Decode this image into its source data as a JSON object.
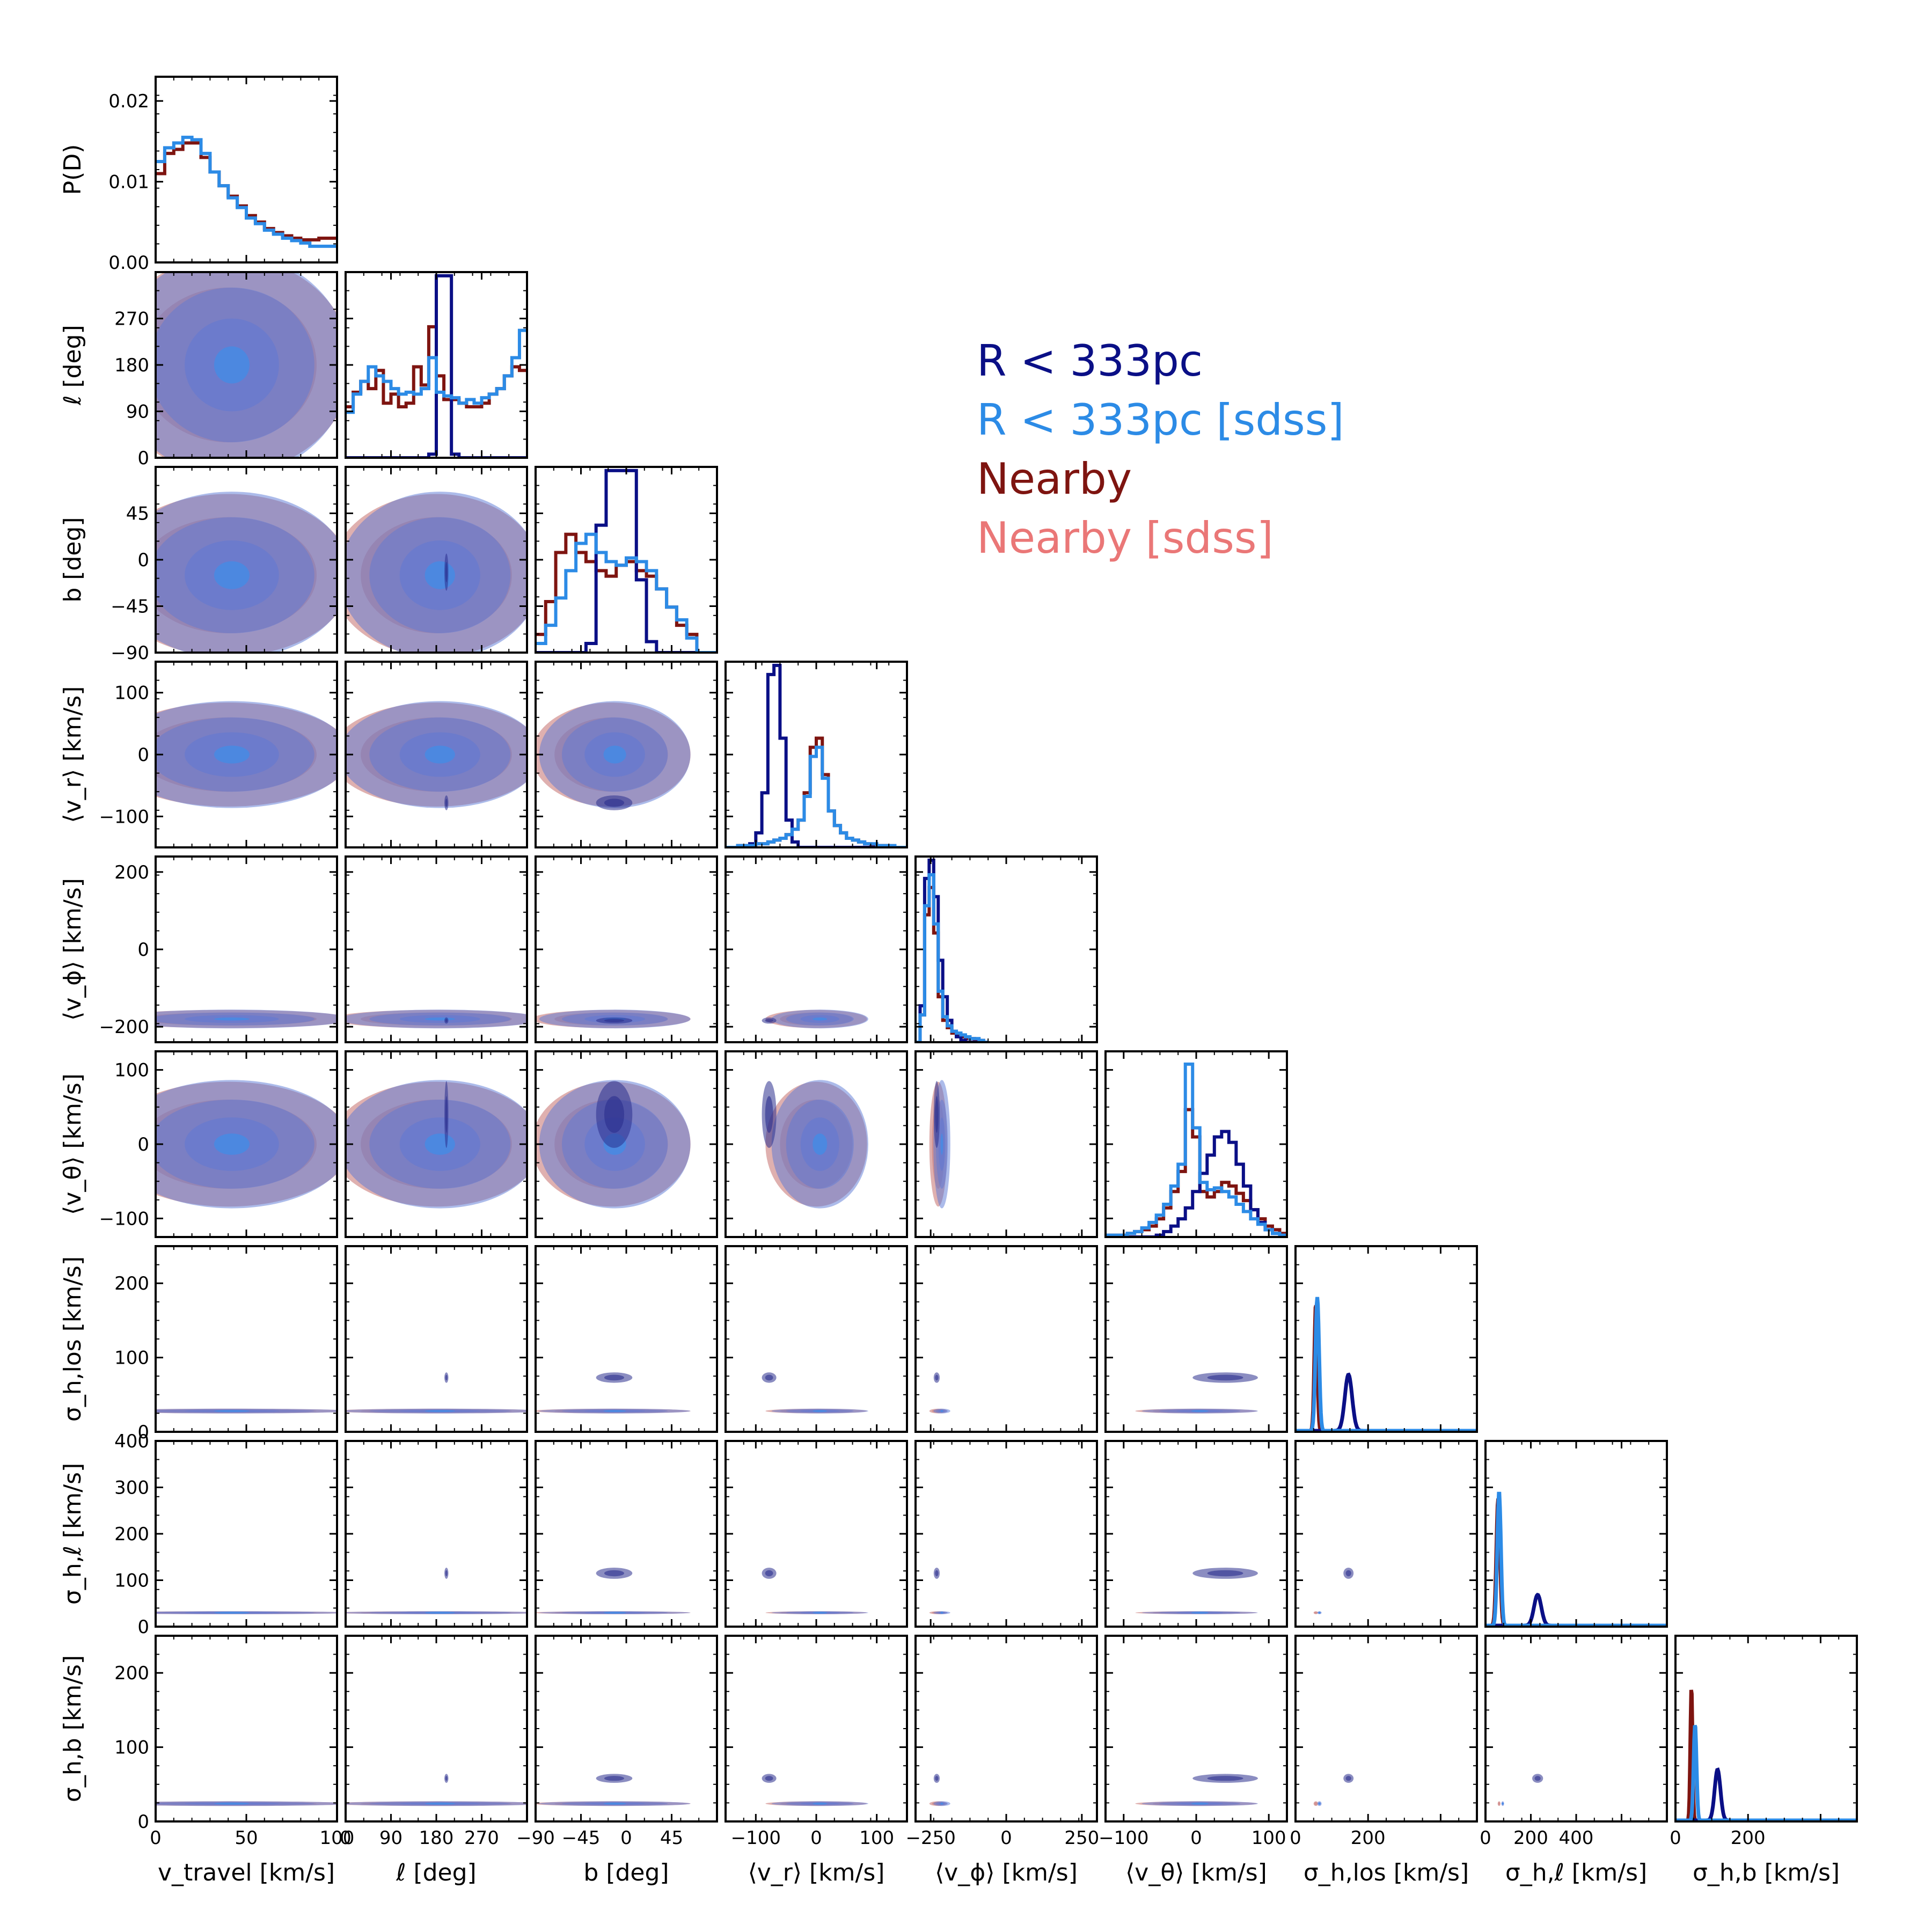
{
  "chart_data": {
    "type": "corner",
    "title": "",
    "grid": false,
    "legend_placement": "upper-right",
    "series": [
      {
        "name": "R < 333pc",
        "color": "#0a0f86"
      },
      {
        "name": "R < 333pc [sdss]",
        "color": "#2c8be6"
      },
      {
        "name": "Nearby",
        "color": "#7e1410"
      },
      {
        "name": "Nearby [sdss]",
        "color": "#ea7777"
      }
    ],
    "contour_colors": {
      "blue_fill": "#5a78d6",
      "red_fill": "#c46f6d",
      "dark_fill": "#2c2f8e"
    },
    "parameters": [
      {
        "key": "vtravel",
        "label": "v_travel [km/s]",
        "range": [
          0,
          100
        ],
        "ticks": [
          0,
          50,
          100
        ]
      },
      {
        "key": "l",
        "label": "ℓ [deg]",
        "range": [
          0,
          360
        ],
        "ticks": [
          0,
          90,
          180,
          270
        ]
      },
      {
        "key": "b",
        "label": "b [deg]",
        "range": [
          -90,
          90
        ],
        "ticks": [
          -90,
          -45,
          0,
          45
        ]
      },
      {
        "key": "vr",
        "label": "⟨v_r⟩ [km/s]",
        "range": [
          -150,
          150
        ],
        "ticks": [
          -100,
          0,
          100
        ]
      },
      {
        "key": "vphi",
        "label": "⟨v_ϕ⟩ [km/s]",
        "range": [
          -300,
          300
        ],
        "ticks": [
          -250,
          0,
          250
        ]
      },
      {
        "key": "vtheta",
        "label": "⟨v_θ⟩ [km/s]",
        "range": [
          -125,
          125
        ],
        "ticks": [
          -100,
          0,
          100
        ]
      },
      {
        "key": "slos",
        "label": "σ_h,los [km/s]",
        "range": [
          0,
          250
        ],
        "ticks": [
          0,
          100,
          200
        ]
      },
      {
        "key": "sl",
        "label": "σ_h,ℓ [km/s]",
        "range": [
          0,
          400
        ],
        "ticks": [
          0,
          100,
          200,
          300,
          400
        ]
      },
      {
        "key": "sb",
        "label": "σ_h,b [km/s]",
        "range": [
          0,
          250
        ],
        "ticks": [
          0,
          100,
          200
        ]
      }
    ],
    "x_tick_labels": [
      [
        "0",
        "50",
        "100"
      ],
      [
        "0",
        "90",
        "180",
        "270"
      ],
      [
        "−90",
        "−45",
        "0",
        "45"
      ],
      [
        "−100",
        "0",
        "100"
      ],
      [
        "−250",
        "0",
        "250"
      ],
      [
        "−100",
        "0",
        "100"
      ],
      [
        "0",
        "200"
      ],
      [
        "0",
        "200",
        "400"
      ],
      [
        "0",
        "200"
      ]
    ],
    "y_tick_labels": [
      [
        "0.00",
        "0.01",
        "0.02"
      ],
      [
        "0",
        "90",
        "180",
        "270"
      ],
      [
        "−90",
        "−45",
        "0",
        "45"
      ],
      [
        "−100",
        "0",
        "100"
      ],
      [
        "−200",
        "0",
        "200"
      ],
      [
        "−100",
        "0",
        "100"
      ],
      [
        "0",
        "100",
        "200"
      ],
      [
        "0",
        "100",
        "200",
        "300",
        "400"
      ],
      [
        "0",
        "100",
        "200"
      ]
    ],
    "y_top_label": "P(D)",
    "marginal_histograms": [
      {
        "param": "vtravel",
        "x_bins": [
          0,
          5,
          10,
          15,
          20,
          25,
          30,
          35,
          40,
          45,
          50,
          55,
          60,
          65,
          70,
          75,
          80,
          85,
          90,
          95,
          100
        ],
        "series": [
          {
            "name": "Nearby",
            "values": [
              0.011,
              0.0135,
              0.014,
              0.0148,
              0.0148,
              0.013,
              0.0112,
              0.0095,
              0.0082,
              0.007,
              0.0058,
              0.005,
              0.0042,
              0.0037,
              0.0033,
              0.003,
              0.0028,
              0.0028,
              0.003,
              0.003
            ]
          },
          {
            "name": "R < 333pc [sdss]",
            "values": [
              0.0125,
              0.0142,
              0.0148,
              0.0155,
              0.0152,
              0.0135,
              0.0112,
              0.0095,
              0.008,
              0.0068,
              0.0055,
              0.0048,
              0.004,
              0.0035,
              0.003,
              0.0027,
              0.0024,
              0.002,
              0.002,
              0.002
            ]
          }
        ]
      },
      {
        "param": "l",
        "x_bins": [
          0,
          15,
          30,
          45,
          60,
          75,
          90,
          105,
          120,
          135,
          150,
          165,
          180,
          195,
          210,
          225,
          240,
          255,
          270,
          285,
          300,
          315,
          330,
          345,
          360
        ],
        "series": [
          {
            "name": "R < 333pc",
            "values": [
              0,
              0,
              0,
              0,
              0,
              0,
              0,
              0,
              0,
              0,
              0,
              0.02,
              1,
              1,
              0.02,
              0,
              0,
              0,
              0,
              0,
              0,
              0,
              0,
              0
            ]
          },
          {
            "name": "Nearby",
            "values": [
              0.28,
              0.36,
              0.42,
              0.38,
              0.48,
              0.3,
              0.35,
              0.28,
              0.3,
              0.5,
              0.4,
              0.72,
              0.45,
              0.32,
              0.32,
              0.3,
              0.28,
              0.28,
              0.3,
              0.35,
              0.38,
              0.45,
              0.5,
              0.48
            ]
          },
          {
            "name": "R < 333pc [sdss]",
            "values": [
              0.25,
              0.35,
              0.42,
              0.5,
              0.45,
              0.42,
              0.38,
              0.35,
              0.36,
              0.35,
              0.38,
              0.55,
              0.36,
              0.34,
              0.33,
              0.3,
              0.32,
              0.3,
              0.33,
              0.35,
              0.38,
              0.45,
              0.55,
              0.7
            ]
          }
        ]
      },
      {
        "param": "b",
        "x_bins": [
          -90,
          -80,
          -70,
          -60,
          -50,
          -40,
          -30,
          -20,
          -10,
          0,
          10,
          20,
          30,
          40,
          50,
          60,
          70,
          80,
          90
        ],
        "series": [
          {
            "name": "R < 333pc",
            "values": [
              0,
              0,
              0,
              0,
              0,
              0.05,
              0.7,
              1,
              1,
              1,
              0.4,
              0.06,
              0,
              0,
              0,
              0,
              0,
              0
            ]
          },
          {
            "name": "Nearby",
            "values": [
              0.1,
              0.28,
              0.55,
              0.65,
              0.55,
              0.5,
              0.45,
              0.42,
              0.48,
              0.5,
              0.45,
              0.42,
              0.35,
              0.25,
              0.15,
              0.1,
              0,
              0
            ]
          },
          {
            "name": "R < 333pc [sdss]",
            "values": [
              0.05,
              0.15,
              0.3,
              0.45,
              0.6,
              0.65,
              0.55,
              0.5,
              0.48,
              0.52,
              0.5,
              0.45,
              0.35,
              0.25,
              0.18,
              0.08,
              0,
              0
            ]
          }
        ]
      },
      {
        "param": "vr",
        "x_bins": [
          -150,
          -140,
          -130,
          -120,
          -110,
          -100,
          -90,
          -80,
          -70,
          -60,
          -50,
          -40,
          -30,
          -20,
          -10,
          0,
          10,
          20,
          30,
          40,
          50,
          60,
          70,
          80,
          90,
          100,
          110,
          120,
          130,
          140,
          150
        ],
        "series": [
          {
            "name": "R < 333pc",
            "values": [
              0,
              0,
              0,
              0,
              0.02,
              0.08,
              0.3,
              0.95,
              1,
              0.6,
              0.15,
              0.03,
              0,
              0,
              0,
              0,
              0,
              0,
              0,
              0,
              0,
              0,
              0,
              0,
              0,
              0,
              0,
              0,
              0,
              0
            ]
          },
          {
            "name": "Nearby",
            "values": [
              0,
              0,
              0.01,
              0.01,
              0.01,
              0.02,
              0.02,
              0.03,
              0.04,
              0.05,
              0.07,
              0.1,
              0.15,
              0.3,
              0.55,
              0.6,
              0.4,
              0.2,
              0.12,
              0.08,
              0.05,
              0.04,
              0.03,
              0.02,
              0.01,
              0.01,
              0.01,
              0,
              0,
              0
            ]
          },
          {
            "name": "R < 333pc [sdss]",
            "values": [
              0,
              0,
              0.01,
              0.01,
              0.01,
              0.02,
              0.02,
              0.03,
              0.04,
              0.05,
              0.07,
              0.1,
              0.15,
              0.28,
              0.5,
              0.55,
              0.38,
              0.2,
              0.12,
              0.08,
              0.05,
              0.04,
              0.03,
              0.02,
              0.02,
              0.01,
              0.01,
              0.01,
              0,
              0
            ]
          }
        ]
      },
      {
        "param": "vphi",
        "x_bins": [
          -300,
          -285,
          -270,
          -255,
          -240,
          -225,
          -210,
          -195,
          -180,
          -165,
          -150,
          -135,
          -120,
          -105,
          -90,
          -75,
          -60
        ],
        "series": [
          {
            "name": "R < 333pc",
            "values": [
              0,
              0.2,
              0.9,
              1,
              0.8,
              0.45,
              0.25,
              0.12,
              0.06,
              0.03,
              0.01,
              0,
              0,
              0,
              0,
              0
            ]
          },
          {
            "name": "Nearby",
            "values": [
              0,
              0.15,
              0.7,
              0.85,
              0.6,
              0.25,
              0.12,
              0.08,
              0.05,
              0.04,
              0.03,
              0.02,
              0.02,
              0.01,
              0.01,
              0
            ]
          },
          {
            "name": "R < 333pc [sdss]",
            "values": [
              0,
              0.15,
              0.75,
              0.92,
              0.65,
              0.28,
              0.14,
              0.09,
              0.06,
              0.05,
              0.04,
              0.03,
              0.02,
              0.02,
              0.01,
              0
            ]
          }
        ]
      },
      {
        "param": "vtheta",
        "x_bins": [
          -125,
          -115,
          -105,
          -95,
          -85,
          -75,
          -65,
          -55,
          -45,
          -35,
          -25,
          -15,
          -5,
          5,
          15,
          25,
          35,
          45,
          55,
          65,
          75,
          85,
          95,
          105,
          115,
          125
        ],
        "series": [
          {
            "name": "R < 333pc",
            "values": [
              0,
              0,
              0,
              0,
              0,
              0,
              0,
              0.01,
              0.03,
              0.06,
              0.1,
              0.16,
              0.25,
              0.35,
              0.45,
              0.55,
              0.58,
              0.52,
              0.4,
              0.28,
              0.15,
              0.08,
              0.04,
              0.02,
              0
            ]
          },
          {
            "name": "Nearby",
            "values": [
              0.01,
              0.01,
              0.01,
              0.02,
              0.03,
              0.04,
              0.06,
              0.1,
              0.16,
              0.25,
              0.36,
              0.7,
              0.55,
              0.25,
              0.22,
              0.25,
              0.3,
              0.28,
              0.24,
              0.2,
              0.15,
              0.1,
              0.06,
              0.04,
              0.02
            ]
          },
          {
            "name": "R < 333pc [sdss]",
            "values": [
              0.01,
              0.01,
              0.01,
              0.02,
              0.03,
              0.05,
              0.08,
              0.12,
              0.18,
              0.28,
              0.4,
              0.95,
              0.6,
              0.3,
              0.26,
              0.27,
              0.25,
              0.22,
              0.18,
              0.14,
              0.1,
              0.07,
              0.04,
              0.02,
              0.01
            ]
          }
        ]
      },
      {
        "param": "slos",
        "peaks": [
          {
            "name": "R < 333pc",
            "center": 73,
            "width": 5,
            "height": 0.42
          },
          {
            "name": "Nearby",
            "center": 28,
            "width": 2,
            "height": 0.95
          },
          {
            "name": "R < 333pc [sdss]",
            "center": 30,
            "width": 2.5,
            "height": 1.0
          }
        ]
      },
      {
        "param": "sl",
        "peaks": [
          {
            "name": "R < 333pc",
            "center": 115,
            "width": 8,
            "height": 0.23
          },
          {
            "name": "Nearby",
            "center": 28,
            "width": 4,
            "height": 0.95
          },
          {
            "name": "R < 333pc [sdss]",
            "center": 30,
            "width": 4,
            "height": 1.0
          }
        ]
      },
      {
        "param": "sb",
        "peaks": [
          {
            "name": "R < 333pc",
            "center": 58,
            "width": 4,
            "height": 0.38
          },
          {
            "name": "Nearby",
            "center": 22,
            "width": 1.5,
            "height": 1.0
          },
          {
            "name": "R < 333pc [sdss]",
            "center": 27,
            "width": 2,
            "height": 0.72
          }
        ]
      }
    ]
  }
}
